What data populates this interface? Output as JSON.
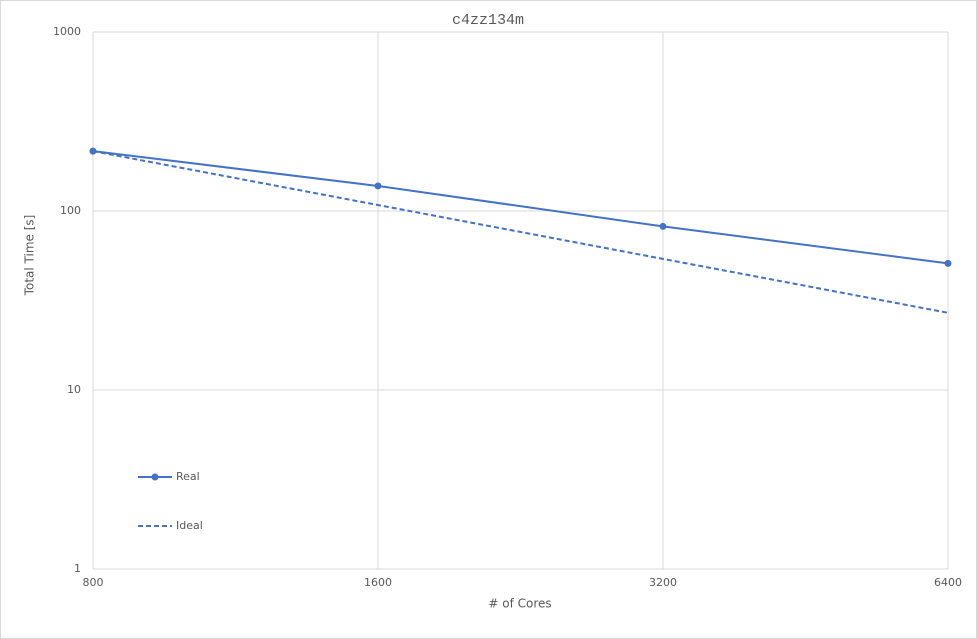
{
  "chart_data": {
    "type": "line",
    "title": "c4zz134m",
    "x_label": "# of Cores",
    "y_label": "Total Time [s]",
    "x": [
      800,
      1600,
      3200,
      6400
    ],
    "series": [
      {
        "name": "Real",
        "color": "#4472c4",
        "values": [
          216,
          138,
          82,
          51
        ],
        "markers": true,
        "dashed": false
      },
      {
        "name": "Ideal",
        "color": "#4472c4",
        "values": [
          216,
          108,
          54,
          27
        ],
        "markers": false,
        "dashed": true
      }
    ],
    "xscale": "log",
    "yscale": "log",
    "xlim": [
      800,
      6400
    ],
    "xticks": [
      800,
      1600,
      3200,
      6400
    ],
    "ylim": [
      1,
      1000
    ],
    "yticks": [
      1,
      10,
      100,
      1000
    ],
    "grid": true,
    "legend": "lower left"
  }
}
